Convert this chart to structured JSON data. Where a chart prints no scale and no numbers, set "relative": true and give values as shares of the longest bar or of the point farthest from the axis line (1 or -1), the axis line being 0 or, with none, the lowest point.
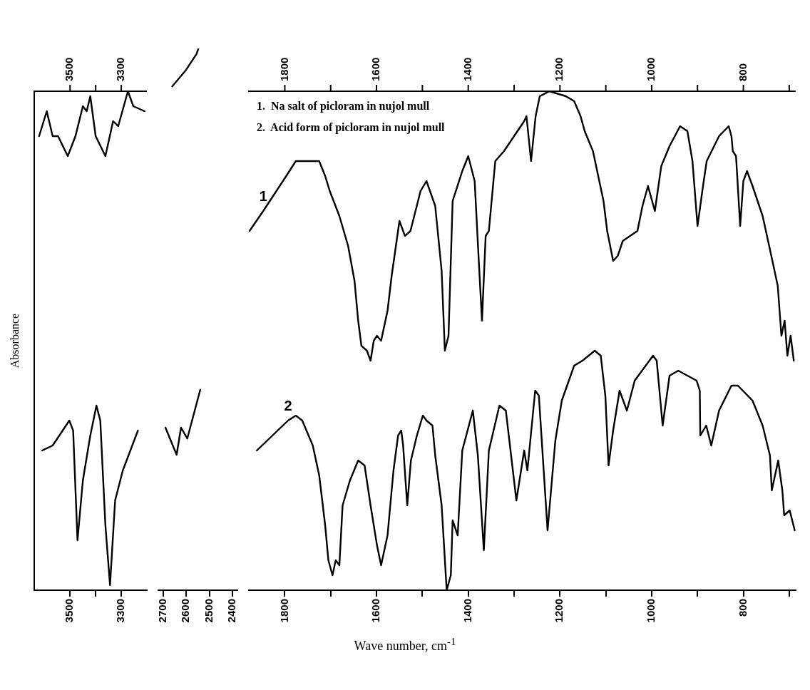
{
  "chart_data": [
    {
      "type": "line",
      "relative": true,
      "marker": "none",
      "ylabel": "Absorbance",
      "xlim": [
        3640,
        3200
      ],
      "xticks": [
        3500,
        {
          "value": 3400,
          "label": null
        },
        3300
      ],
      "x2lim": [
        3640,
        3200
      ],
      "x2ticks": [
        3500,
        {
          "value": 3400,
          "label": null
        },
        3300
      ],
      "series": [
        {
          "color": "#000000",
          "x": [
            3621,
            3591,
            3568,
            3547,
            3509,
            3479,
            3450,
            3435,
            3421,
            3400,
            3362,
            3332,
            3312,
            3274,
            3253,
            3209
          ],
          "values": [
            0.91,
            0.96,
            0.91,
            0.91,
            0.87,
            0.91,
            0.97,
            0.96,
            0.99,
            0.91,
            0.87,
            0.94,
            0.93,
            1,
            0.97,
            0.96
          ]
        },
        {
          "color": "#000000",
          "x": [
            3609,
            3568,
            3529,
            3503,
            3488,
            3471,
            3450,
            3421,
            3397,
            3382,
            3362,
            3344,
            3324,
            3294,
            3235
          ],
          "values": [
            0.28,
            0.29,
            0.32,
            0.34,
            0.32,
            0.1,
            0.22,
            0.31,
            0.37,
            0.34,
            0.13,
            0.01,
            0.18,
            0.24,
            0.32
          ]
        }
      ]
    },
    {
      "type": "line",
      "relative": true,
      "marker": "none",
      "xlim": [
        2720,
        2380
      ],
      "xticks": [
        2700,
        2600,
        2500,
        2400
      ],
      "series": [
        {
          "color": "#000000",
          "x": [
            2660,
            2601,
            2555,
            2547
          ],
          "values": [
            0.93,
            0.96,
            0.99,
            1
          ]
        },
        {
          "color": "#000000",
          "x": [
            2689,
            2641,
            2622,
            2595,
            2539
          ],
          "values": [
            0.3,
            0.25,
            0.3,
            0.28,
            0.37
          ]
        }
      ]
    },
    {
      "type": "line",
      "relative": true,
      "marker": "none",
      "xlabel": "Wave number, cm$^{-1}$",
      "annotations": [
        "1.  Na salt of picloram in nujol mull",
        "2.  Acid form of picloram in nujol mull"
      ],
      "xlim": [
        1880,
        686
      ],
      "xticks": [
        1800,
        {
          "value": 1700,
          "label": null
        },
        1600,
        {
          "value": 1500,
          "label": null
        },
        1400,
        {
          "value": 1300,
          "label": null
        },
        1200,
        {
          "value": 1100,
          "label": null
        },
        1000,
        {
          "value": 900,
          "label": null
        },
        800,
        {
          "value": 700,
          "label": null
        }
      ],
      "x2lim": [
        1880,
        686
      ],
      "x2ticks": [
        1800,
        {
          "value": 1700,
          "label": null
        },
        1600,
        {
          "value": 1500,
          "label": null
        },
        1400,
        {
          "value": 1300,
          "label": null
        },
        1200,
        {
          "value": 1100,
          "label": null
        },
        1000,
        {
          "value": 900,
          "label": null
        },
        800,
        {
          "value": 700,
          "label": null
        }
      ],
      "series": [
        {
          "name": "1",
          "color": "#000000",
          "x": [
            1877,
            1847,
            1797,
            1776,
            1739,
            1725,
            1712,
            1702,
            1681,
            1662,
            1648,
            1640,
            1633,
            1621,
            1613,
            1606,
            1599,
            1590,
            1576,
            1567,
            1550,
            1538,
            1526,
            1504,
            1491,
            1472,
            1458,
            1451,
            1443,
            1434,
            1413,
            1400,
            1386,
            1377,
            1370,
            1362,
            1355,
            1341,
            1322,
            1278,
            1273,
            1263,
            1253,
            1244,
            1223,
            1187,
            1169,
            1155,
            1146,
            1128,
            1105,
            1097,
            1084,
            1074,
            1063,
            1047,
            1031,
            1020,
            1008,
            993,
            979,
            961,
            938,
            922,
            911,
            900,
            888,
            880,
            853,
            832,
            826,
            823,
            816,
            807,
            800,
            792,
            780,
            758,
            739,
            725,
            717,
            710,
            704,
            697,
            690
          ],
          "values": [
            0.72,
            0.76,
            0.83,
            0.86,
            0.86,
            0.86,
            0.83,
            0.8,
            0.75,
            0.69,
            0.62,
            0.54,
            0.49,
            0.48,
            0.46,
            0.5,
            0.51,
            0.5,
            0.56,
            0.63,
            0.74,
            0.71,
            0.72,
            0.8,
            0.82,
            0.77,
            0.64,
            0.48,
            0.51,
            0.78,
            0.84,
            0.87,
            0.82,
            0.66,
            0.54,
            0.71,
            0.72,
            0.86,
            0.88,
            0.94,
            0.95,
            0.86,
            0.95,
            0.99,
            1,
            0.99,
            0.98,
            0.95,
            0.92,
            0.88,
            0.78,
            0.72,
            0.66,
            0.67,
            0.7,
            0.71,
            0.72,
            0.77,
            0.81,
            0.76,
            0.85,
            0.89,
            0.93,
            0.92,
            0.86,
            0.73,
            0.81,
            0.86,
            0.91,
            0.93,
            0.91,
            0.88,
            0.87,
            0.73,
            0.82,
            0.84,
            0.81,
            0.75,
            0.67,
            0.61,
            0.51,
            0.54,
            0.47,
            0.51,
            0.46
          ]
        },
        {
          "name": "2",
          "color": "#000000",
          "x": [
            1861,
            1793,
            1776,
            1762,
            1739,
            1725,
            1712,
            1705,
            1696,
            1689,
            1681,
            1674,
            1658,
            1640,
            1626,
            1613,
            1599,
            1590,
            1576,
            1563,
            1553,
            1546,
            1542,
            1533,
            1525,
            1512,
            1499,
            1491,
            1478,
            1472,
            1458,
            1447,
            1438,
            1434,
            1423,
            1413,
            1390,
            1379,
            1366,
            1355,
            1332,
            1318,
            1295,
            1278,
            1271,
            1254,
            1246,
            1227,
            1210,
            1196,
            1169,
            1151,
            1124,
            1111,
            1101,
            1094,
            1084,
            1070,
            1054,
            1037,
            997,
            989,
            976,
            961,
            942,
            902,
            895,
            894,
            881,
            870,
            853,
            826,
            812,
            780,
            758,
            742,
            738,
            724,
            715,
            711,
            699,
            688
          ],
          "values": [
            0.28,
            0.34,
            0.35,
            0.34,
            0.29,
            0.23,
            0.13,
            0.06,
            0.03,
            0.06,
            0.05,
            0.17,
            0.22,
            0.26,
            0.25,
            0.17,
            0.09,
            0.05,
            0.11,
            0.24,
            0.31,
            0.32,
            0.29,
            0.17,
            0.26,
            0.31,
            0.35,
            0.34,
            0.33,
            0.27,
            0.17,
            0,
            0.03,
            0.14,
            0.11,
            0.28,
            0.36,
            0.27,
            0.08,
            0.28,
            0.37,
            0.36,
            0.18,
            0.28,
            0.24,
            0.4,
            0.39,
            0.12,
            0.3,
            0.38,
            0.45,
            0.46,
            0.48,
            0.47,
            0.39,
            0.25,
            0.32,
            0.4,
            0.36,
            0.42,
            0.47,
            0.46,
            0.33,
            0.43,
            0.44,
            0.42,
            0.4,
            0.31,
            0.33,
            0.29,
            0.36,
            0.41,
            0.41,
            0.38,
            0.33,
            0.27,
            0.2,
            0.26,
            0.2,
            0.15,
            0.16,
            0.12
          ]
        }
      ]
    }
  ]
}
